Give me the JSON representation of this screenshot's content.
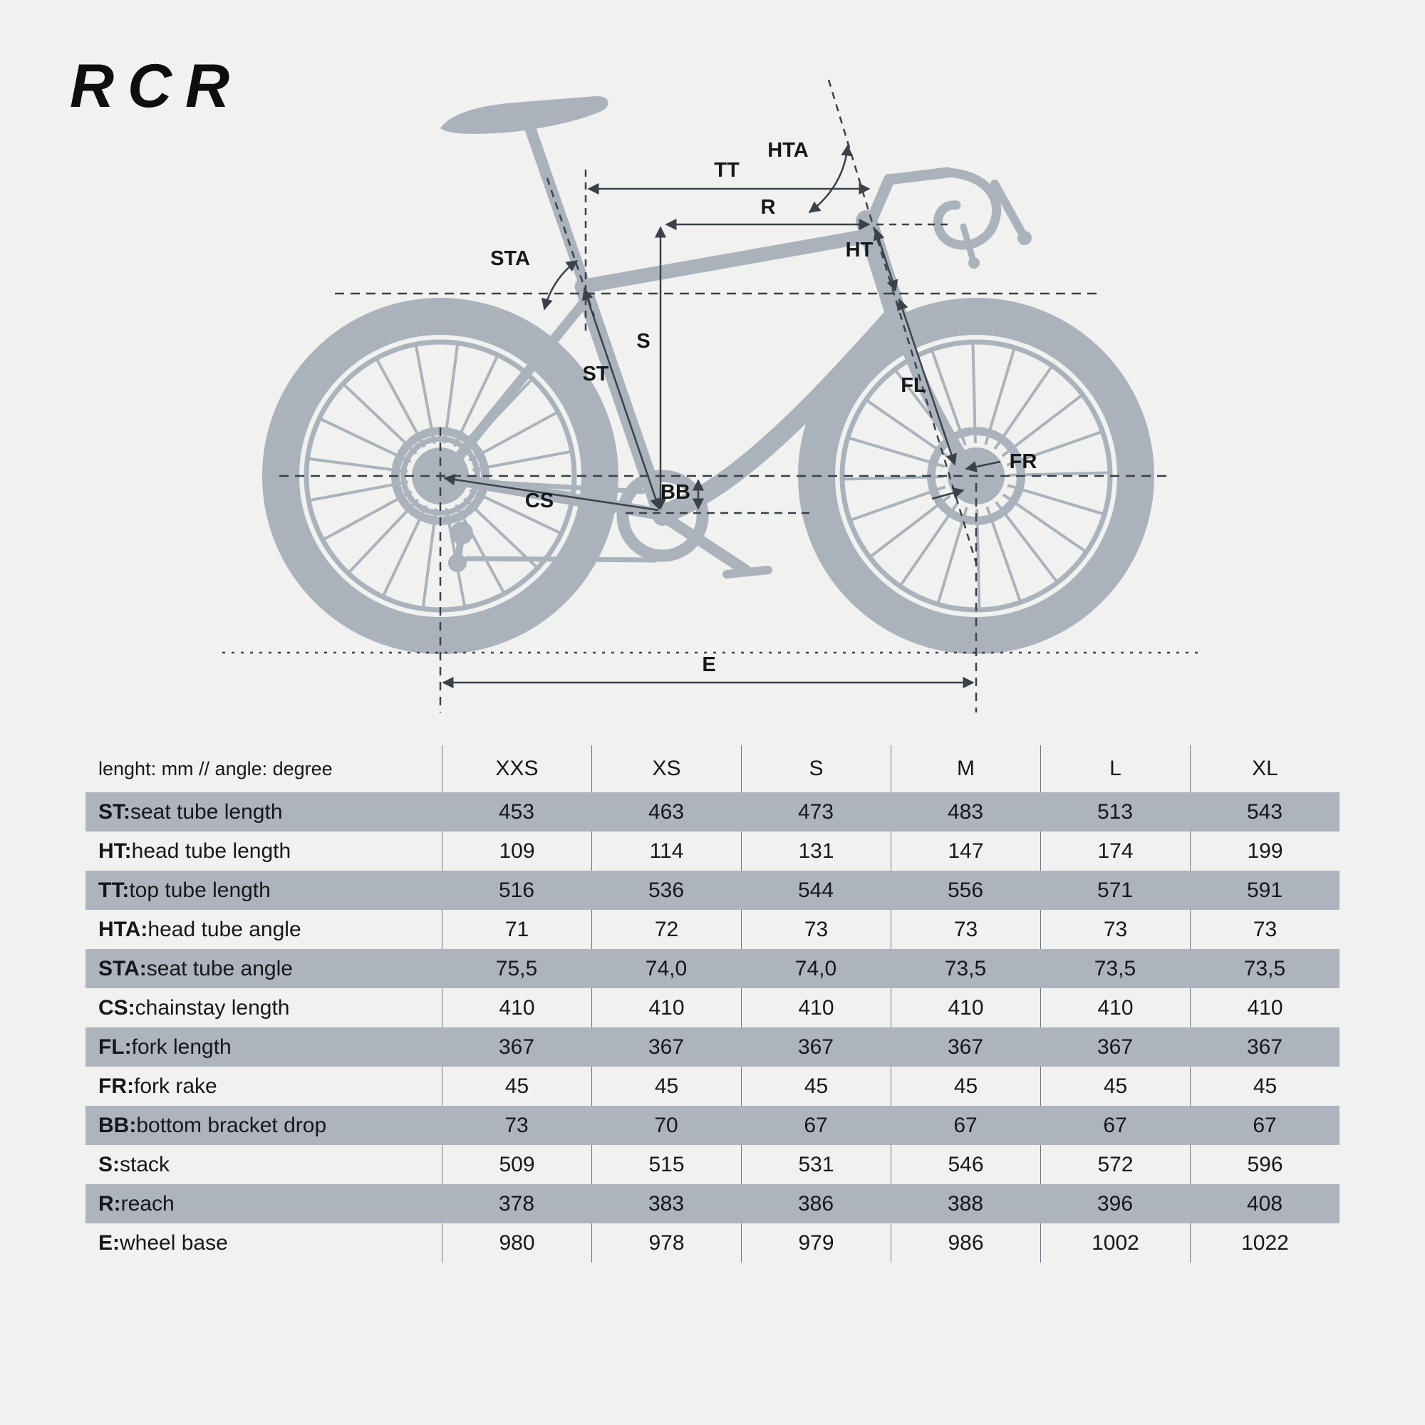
{
  "page": {
    "logo": "RCR"
  },
  "colors": {
    "background": "#f1f1f0",
    "silhouette": "#aab3bc",
    "annotation": "#3a4149",
    "band": "#adb4bd",
    "text": "#15181b",
    "divider": "#6e757d"
  },
  "diagram": {
    "labels": {
      "hta": "HTA",
      "tt": "TT",
      "r": "R",
      "sta": "STA",
      "ht": "HT",
      "s": "S",
      "st": "ST",
      "fl": "FL",
      "cs": "CS",
      "bb": "BB",
      "fr": "FR",
      "e": "E"
    }
  },
  "table": {
    "unit_header": "lenght: mm // angle: degree",
    "size_headers": [
      "XXS",
      "XS",
      "S",
      "M",
      "L",
      "XL"
    ],
    "rows": [
      {
        "prefix": "ST:",
        "desc": " seat tube length",
        "values": [
          "453",
          "463",
          "473",
          "483",
          "513",
          "543"
        ]
      },
      {
        "prefix": "HT:",
        "desc": " head tube length",
        "values": [
          "109",
          "114",
          "131",
          "147",
          "174",
          "199"
        ]
      },
      {
        "prefix": "TT:",
        "desc": " top tube length",
        "values": [
          "516",
          "536",
          "544",
          "556",
          "571",
          "591"
        ]
      },
      {
        "prefix": "HTA:",
        "desc": " head tube angle",
        "values": [
          "71",
          "72",
          "73",
          "73",
          "73",
          "73"
        ]
      },
      {
        "prefix": "STA:",
        "desc": " seat tube angle",
        "values": [
          "75,5",
          "74,0",
          "74,0",
          "73,5",
          "73,5",
          "73,5"
        ]
      },
      {
        "prefix": "CS:",
        "desc": " chainstay length",
        "values": [
          "410",
          "410",
          "410",
          "410",
          "410",
          "410"
        ]
      },
      {
        "prefix": "FL:",
        "desc": " fork length",
        "values": [
          "367",
          "367",
          "367",
          "367",
          "367",
          "367"
        ]
      },
      {
        "prefix": "FR:",
        "desc": " fork rake",
        "values": [
          "45",
          "45",
          "45",
          "45",
          "45",
          "45"
        ]
      },
      {
        "prefix": "BB:",
        "desc": " bottom bracket drop",
        "values": [
          "73",
          "70",
          "67",
          "67",
          "67",
          "67"
        ]
      },
      {
        "prefix": "S:",
        "desc": " stack",
        "values": [
          "509",
          "515",
          "531",
          "546",
          "572",
          "596"
        ]
      },
      {
        "prefix": "R:",
        "desc": " reach",
        "values": [
          "378",
          "383",
          "386",
          "388",
          "396",
          "408"
        ]
      },
      {
        "prefix": "E:",
        "desc": " wheel base",
        "values": [
          "980",
          "978",
          "979",
          "986",
          "1002",
          "1022"
        ]
      }
    ]
  }
}
